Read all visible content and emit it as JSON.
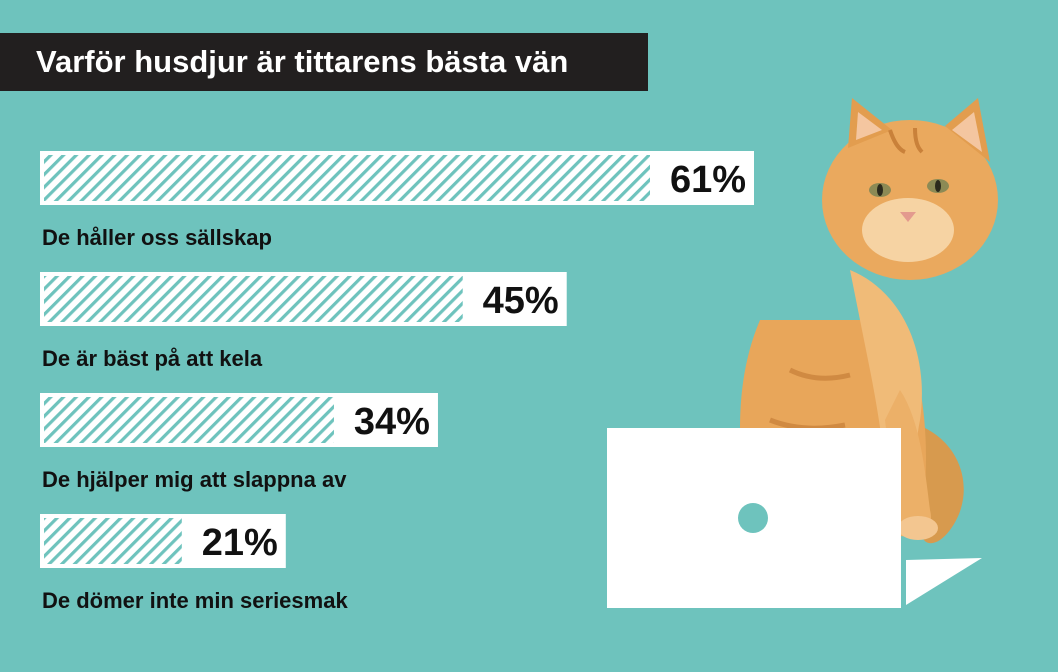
{
  "chart_data": {
    "type": "bar",
    "orientation": "horizontal",
    "title": "Varför husdjur är tittarens bästa vän",
    "categories": [
      "De håller oss sällskap",
      "De är bäst på att kela",
      "De hjälper mig att slappna av",
      "De dömer inte min seriesmak"
    ],
    "values": [
      61,
      45,
      34,
      21
    ],
    "value_labels": [
      "61%",
      "45%",
      "34%",
      "21%"
    ],
    "unit": "%",
    "xlim": [
      0,
      61
    ],
    "grid": false,
    "legend": "none"
  },
  "colors": {
    "background": "#6ec3bd",
    "bar_fill": "#ffffff",
    "bar_hatch": "#6ec3bd",
    "title_bg": "#221f1f",
    "title_text": "#ffffff",
    "text": "#111111"
  },
  "illustration": {
    "subject": "orange-tabby-cat-icon",
    "device": "laptop-icon"
  }
}
